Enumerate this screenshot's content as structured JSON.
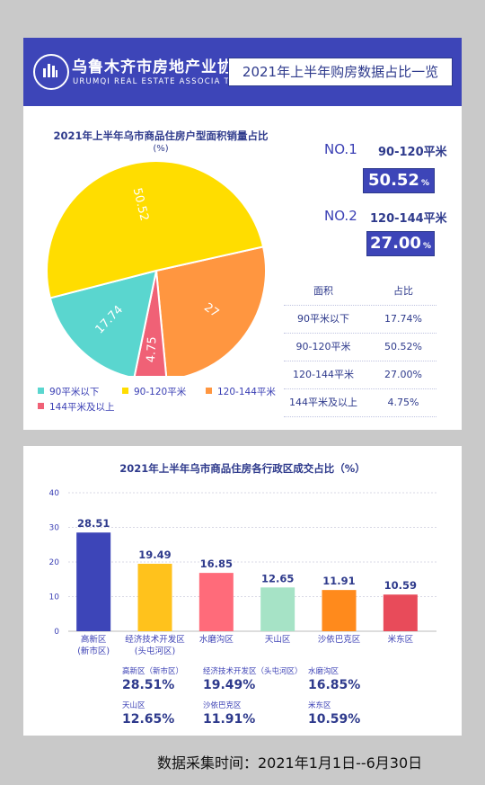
{
  "header": {
    "org_name_cn": "乌鲁木齐市房地产业协会",
    "org_name_en": "URUMQI REAL ESTATE ASSOCIA TION",
    "title": "2021年上半年购房数据占比一览"
  },
  "ranking": [
    {
      "rank": "NO.1",
      "range": "90-120平米",
      "value": "50.52",
      "unit": "%"
    },
    {
      "rank": "NO.2",
      "range": "120-144平米",
      "value": "27.00",
      "unit": "%"
    }
  ],
  "area_table": {
    "headers": [
      "面积",
      "占比"
    ],
    "rows": [
      [
        "90平米以下",
        "17.74%"
      ],
      [
        "90-120平米",
        "50.52%"
      ],
      [
        "120-144平米",
        "27.00%"
      ],
      [
        "144平米及以上",
        "4.75%"
      ]
    ]
  },
  "district_stats": [
    {
      "label": "高新区（新市区）",
      "value": "28.51%"
    },
    {
      "label": "经济技术开发区（头屯河区）",
      "value": "19.49%"
    },
    {
      "label": "水磨沟区",
      "value": "16.85%"
    },
    {
      "label": "天山区",
      "value": "12.65%"
    },
    {
      "label": "沙依巴克区",
      "value": "11.91%"
    },
    {
      "label": "米东区",
      "value": "10.59%"
    }
  ],
  "footer": "数据采集时间：2021年1月1日--6月30日",
  "chart_data": [
    {
      "type": "pie",
      "title": "2021年上半年乌市商品住房户型面积销量占比",
      "unit": "(%)",
      "labels": [
        "90平米以下",
        "90-120平米",
        "120-144平米",
        "144平米及以上"
      ],
      "values": [
        17.74,
        50.52,
        27,
        4.75
      ],
      "slice_labels": [
        "17.74",
        "50.52",
        "27",
        "4.75"
      ],
      "colors": [
        "#5ad6cf",
        "#ffdd00",
        "#ff9640",
        "#f06176"
      ],
      "legend": "bottom"
    },
    {
      "type": "bar",
      "title": "2021年上半年乌市商品住房各行政区成交占比（%）",
      "categories": [
        [
          "高新区",
          "(新市区)"
        ],
        [
          "经济技术开发区",
          "(头屯河区)"
        ],
        [
          "水磨沟区"
        ],
        [
          "天山区"
        ],
        [
          "沙依巴克区"
        ],
        [
          "米东区"
        ]
      ],
      "values": [
        28.51,
        19.49,
        16.85,
        12.65,
        11.91,
        10.59
      ],
      "value_labels": [
        "28.51",
        "19.49",
        "16.85",
        "12.65",
        "11.91",
        "10.59"
      ],
      "colors": [
        "#3d45b8",
        "#ffc21c",
        "#ff6b7a",
        "#a6e3c6",
        "#ff8a1c",
        "#e84b5a"
      ],
      "ylim": [
        0,
        40
      ],
      "yticks": [
        "0",
        "10",
        "20",
        "30",
        "40"
      ],
      "grid": true
    }
  ]
}
